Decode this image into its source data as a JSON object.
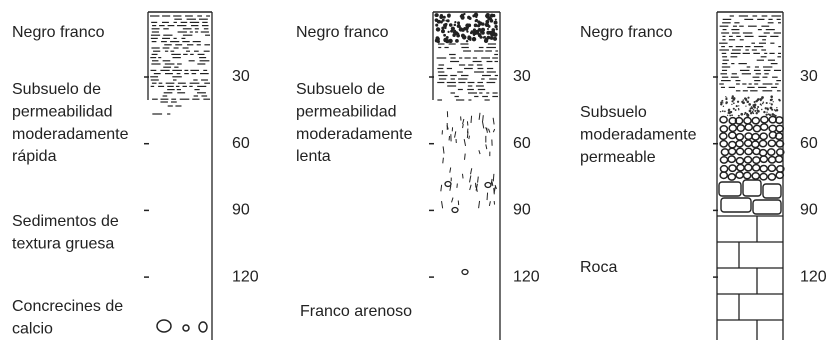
{
  "profiles": [
    {
      "layers": [
        [
          "Negro franco"
        ],
        [
          "Subsuelo de",
          "permeabilidad",
          "moderadamente",
          "rápida"
        ],
        [
          "Sedimentos de",
          "textura gruesa"
        ],
        [
          "Concrecines de",
          "calcio"
        ]
      ],
      "depths": [
        30,
        60,
        90,
        120
      ]
    },
    {
      "layers": [
        [
          "Negro franco"
        ],
        [
          "Subsuelo de",
          "permeabilidad",
          "moderadamente",
          "lenta"
        ],
        [
          "Franco arenoso"
        ]
      ],
      "depths": [
        30,
        60,
        90,
        120
      ]
    },
    {
      "layers": [
        [
          "Negro franco"
        ],
        [
          "Subsuelo",
          "moderadamente",
          "permeable"
        ],
        [
          "Roca"
        ]
      ],
      "depths": [
        30,
        60,
        90,
        120
      ]
    }
  ]
}
